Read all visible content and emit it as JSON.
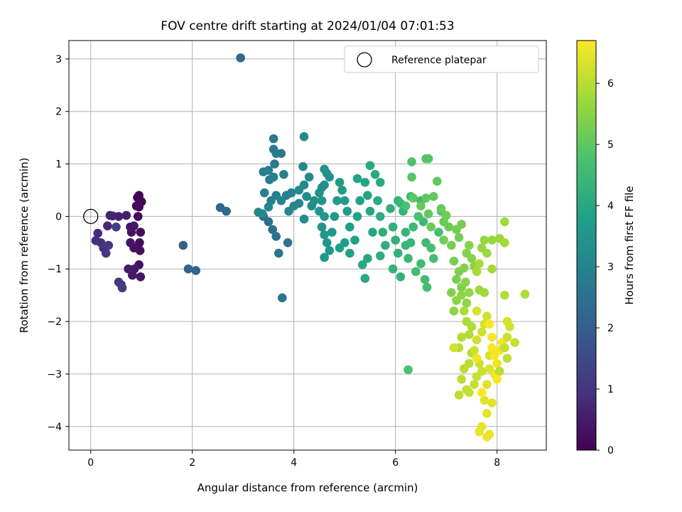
{
  "chart_data": {
    "type": "scatter",
    "title": "FOV centre drift starting at 2024/01/04 07:01:53",
    "xlabel": "Angular distance from reference (arcmin)",
    "ylabel": "Rotation from reference (arcmin)",
    "xlim": [
      -0.43,
      8.97
    ],
    "ylim": [
      -4.45,
      3.35
    ],
    "xticks": [
      0,
      2,
      4,
      6,
      8
    ],
    "yticks": [
      3,
      2,
      1,
      0,
      -1,
      -2,
      -3,
      -4
    ],
    "xtick_labels": [
      "0",
      "2",
      "4",
      "6",
      "8"
    ],
    "ytick_labels": [
      "3",
      "2",
      "1",
      "0",
      "−1",
      "−2",
      "−3",
      "−4"
    ],
    "grid": true,
    "colormap": "viridis",
    "colorbar": {
      "label": "Hours from first FF file",
      "range": [
        0,
        6.7
      ],
      "ticks": [
        0,
        1,
        2,
        3,
        4,
        5,
        6
      ],
      "tick_labels": [
        "0",
        "1",
        "2",
        "3",
        "4",
        "5",
        "6"
      ]
    },
    "legend": {
      "position": "top-right",
      "entries": [
        {
          "label": "Reference platepar",
          "marker": "open-circle",
          "x": 0,
          "y": 0
        }
      ]
    },
    "points": [
      [
        0.95,
        0.4,
        0.05
      ],
      [
        0.92,
        0.36,
        0.08
      ],
      [
        0.9,
        0.2,
        0.1
      ],
      [
        1.0,
        0.28,
        0.12
      ],
      [
        0.95,
        0.18,
        0.15
      ],
      [
        0.93,
        0.0,
        0.18
      ],
      [
        0.98,
        -0.3,
        0.2
      ],
      [
        0.96,
        -0.5,
        0.22
      ],
      [
        0.97,
        -0.65,
        0.25
      ],
      [
        0.95,
        -0.92,
        0.28
      ],
      [
        0.85,
        -0.6,
        0.3
      ],
      [
        0.78,
        -0.5,
        0.33
      ],
      [
        0.8,
        -0.3,
        0.35
      ],
      [
        0.78,
        -0.2,
        0.38
      ],
      [
        0.85,
        -0.18,
        0.4
      ],
      [
        0.98,
        -1.15,
        0.42
      ],
      [
        0.82,
        -1.12,
        0.45
      ],
      [
        0.86,
        -1.0,
        0.48
      ],
      [
        0.74,
        -1.0,
        0.5
      ],
      [
        0.7,
        0.02,
        0.55
      ],
      [
        0.55,
        0.0,
        0.6
      ],
      [
        0.43,
        0.01,
        0.65
      ],
      [
        0.38,
        0.02,
        0.7
      ],
      [
        0.33,
        -0.18,
        0.75
      ],
      [
        0.14,
        -0.32,
        0.8
      ],
      [
        0.1,
        -0.46,
        0.85
      ],
      [
        0.2,
        -0.5,
        0.9
      ],
      [
        0.25,
        -0.6,
        0.95
      ],
      [
        0.3,
        -0.7,
        1.0
      ],
      [
        0.35,
        -0.55,
        1.05
      ],
      [
        0.55,
        -1.25,
        1.1
      ],
      [
        0.6,
        -1.3,
        1.15
      ],
      [
        0.62,
        -1.36,
        1.2
      ],
      [
        0.5,
        -0.2,
        1.25
      ],
      [
        1.82,
        -0.55,
        2.05
      ],
      [
        1.92,
        -1.0,
        2.1
      ],
      [
        2.07,
        -1.03,
        2.15
      ],
      [
        2.55,
        0.17,
        2.2
      ],
      [
        2.67,
        0.1,
        2.25
      ],
      [
        2.95,
        3.02,
        2.3
      ],
      [
        3.4,
        0.0,
        2.35
      ],
      [
        3.5,
        -0.1,
        2.4
      ],
      [
        3.58,
        -0.25,
        2.45
      ],
      [
        3.65,
        -0.38,
        2.5
      ],
      [
        3.7,
        -0.7,
        2.55
      ],
      [
        3.77,
        -1.55,
        2.6
      ],
      [
        3.88,
        -0.5,
        2.65
      ],
      [
        3.6,
        1.48,
        2.7
      ],
      [
        3.6,
        1.28,
        2.72
      ],
      [
        3.65,
        1.2,
        2.74
      ],
      [
        3.75,
        1.2,
        2.76
      ],
      [
        3.62,
        1.0,
        2.78
      ],
      [
        3.4,
        0.85,
        2.8
      ],
      [
        3.5,
        0.88,
        2.82
      ],
      [
        3.52,
        0.7,
        2.84
      ],
      [
        3.6,
        0.75,
        2.86
      ],
      [
        3.8,
        0.8,
        2.88
      ],
      [
        3.42,
        0.45,
        2.9
      ],
      [
        3.55,
        0.3,
        2.92
      ],
      [
        3.65,
        0.4,
        2.94
      ],
      [
        3.75,
        0.3,
        2.96
      ],
      [
        3.85,
        0.4,
        2.98
      ],
      [
        3.95,
        0.45,
        3.0
      ],
      [
        3.3,
        0.08,
        3.02
      ],
      [
        3.38,
        0.05,
        3.04
      ],
      [
        3.5,
        0.18,
        3.06
      ],
      [
        3.9,
        0.1,
        3.08
      ],
      [
        4.0,
        0.2,
        3.1
      ],
      [
        4.1,
        0.25,
        3.12
      ],
      [
        4.2,
        1.52,
        3.14
      ],
      [
        4.18,
        0.95,
        3.16
      ],
      [
        4.3,
        0.75,
        3.18
      ],
      [
        4.2,
        0.6,
        3.2
      ],
      [
        4.1,
        0.5,
        3.22
      ],
      [
        4.25,
        0.38,
        3.24
      ],
      [
        4.35,
        0.2,
        3.26
      ],
      [
        4.2,
        -0.05,
        3.28
      ],
      [
        4.4,
        0.3,
        3.3
      ],
      [
        4.5,
        0.45,
        3.32
      ],
      [
        4.55,
        0.55,
        3.34
      ],
      [
        4.6,
        0.6,
        3.36
      ],
      [
        4.65,
        0.82,
        3.38
      ],
      [
        4.6,
        0.9,
        3.4
      ],
      [
        4.7,
        0.75,
        3.42
      ],
      [
        4.55,
        0.3,
        3.44
      ],
      [
        4.5,
        0.1,
        3.46
      ],
      [
        4.6,
        0.0,
        3.48
      ],
      [
        4.55,
        -0.2,
        3.5
      ],
      [
        4.6,
        -0.35,
        3.52
      ],
      [
        4.65,
        -0.5,
        3.54
      ],
      [
        4.7,
        -0.65,
        3.56
      ],
      [
        4.6,
        -0.78,
        3.58
      ],
      [
        4.75,
        -0.3,
        3.6
      ],
      [
        4.8,
        0.0,
        3.62
      ],
      [
        4.85,
        0.3,
        3.64
      ],
      [
        4.9,
        0.65,
        3.66
      ],
      [
        4.95,
        0.5,
        3.68
      ],
      [
        5.0,
        0.3,
        3.7
      ],
      [
        5.05,
        0.1,
        3.72
      ],
      [
        5.1,
        -0.2,
        3.74
      ],
      [
        5.0,
        -0.5,
        3.76
      ],
      [
        4.9,
        -0.6,
        3.78
      ],
      [
        5.1,
        -0.7,
        3.8
      ],
      [
        5.2,
        -0.45,
        3.82
      ],
      [
        5.25,
        0.0,
        3.84
      ],
      [
        5.3,
        0.3,
        3.86
      ],
      [
        5.25,
        0.72,
        3.88
      ],
      [
        5.4,
        0.65,
        3.9
      ],
      [
        5.45,
        0.4,
        3.92
      ],
      [
        5.5,
        0.1,
        3.94
      ],
      [
        5.55,
        -0.3,
        3.96
      ],
      [
        5.45,
        -0.8,
        3.98
      ],
      [
        5.4,
        -1.18,
        4.0
      ],
      [
        5.35,
        -0.92,
        4.02
      ],
      [
        5.5,
        0.97,
        4.04
      ],
      [
        5.6,
        0.8,
        4.06
      ],
      [
        5.7,
        0.65,
        4.08
      ],
      [
        5.65,
        0.3,
        4.1
      ],
      [
        5.7,
        0.0,
        4.12
      ],
      [
        5.75,
        -0.3,
        4.14
      ],
      [
        5.8,
        -0.55,
        4.16
      ],
      [
        5.7,
        -0.75,
        4.18
      ],
      [
        5.9,
        0.15,
        4.2
      ],
      [
        5.95,
        -0.2,
        4.22
      ],
      [
        6.0,
        -0.45,
        4.24
      ],
      [
        6.05,
        -0.7,
        4.26
      ],
      [
        5.95,
        -1.0,
        4.28
      ],
      [
        6.1,
        -1.15,
        4.3
      ],
      [
        6.05,
        0.3,
        4.32
      ],
      [
        6.15,
        0.1,
        4.34
      ],
      [
        6.2,
        -0.3,
        4.36
      ],
      [
        6.3,
        -0.5,
        4.38
      ],
      [
        6.25,
        -0.8,
        4.4
      ],
      [
        6.2,
        -0.55,
        4.42
      ],
      [
        6.1,
        0.25,
        4.44
      ],
      [
        6.3,
        0.38,
        4.46
      ],
      [
        6.35,
        -0.2,
        4.48
      ],
      [
        6.5,
        0.3,
        4.5
      ],
      [
        6.55,
        -0.1,
        4.52
      ],
      [
        6.6,
        -0.5,
        4.54
      ],
      [
        6.5,
        -0.9,
        4.56
      ],
      [
        6.4,
        -1.05,
        4.58
      ],
      [
        6.58,
        -1.2,
        4.6
      ],
      [
        6.62,
        -1.35,
        4.62
      ],
      [
        6.75,
        -0.8,
        4.64
      ],
      [
        6.7,
        -0.6,
        4.66
      ],
      [
        6.85,
        -0.3,
        4.68
      ],
      [
        6.9,
        0.1,
        4.7
      ],
      [
        6.2,
        0.2,
        4.72
      ],
      [
        6.45,
        0.0,
        4.74
      ],
      [
        6.25,
        -2.92,
        4.76
      ],
      [
        6.32,
        1.04,
        4.8
      ],
      [
        6.6,
        1.1,
        4.85
      ],
      [
        6.65,
        1.1,
        4.88
      ],
      [
        6.32,
        0.75,
        4.9
      ],
      [
        6.35,
        0.35,
        4.95
      ],
      [
        6.6,
        0.35,
        5.0
      ],
      [
        6.75,
        0.38,
        5.02
      ],
      [
        6.82,
        0.67,
        5.04
      ],
      [
        6.65,
        0.05,
        5.06
      ],
      [
        6.5,
        0.2,
        5.08
      ],
      [
        6.9,
        0.15,
        5.1
      ],
      [
        6.95,
        -0.1,
        5.12
      ],
      [
        6.7,
        -0.2,
        5.14
      ],
      [
        7.05,
        -0.2,
        5.16
      ],
      [
        7.0,
        0.02,
        5.18
      ],
      [
        6.95,
        -0.45,
        5.2
      ],
      [
        7.2,
        -0.25,
        5.22
      ],
      [
        7.25,
        -0.4,
        5.24
      ],
      [
        7.3,
        -0.15,
        5.26
      ],
      [
        7.1,
        -0.55,
        5.28
      ],
      [
        7.15,
        -0.85,
        5.3
      ],
      [
        7.2,
        -1.2,
        5.32
      ],
      [
        7.25,
        -1.05,
        5.34
      ],
      [
        7.1,
        -1.45,
        5.36
      ],
      [
        7.3,
        -1.35,
        5.38
      ],
      [
        7.35,
        -0.98,
        5.4
      ],
      [
        7.4,
        -0.7,
        5.42
      ],
      [
        7.45,
        -0.55,
        5.44
      ],
      [
        7.5,
        -0.8,
        5.46
      ],
      [
        7.55,
        -0.95,
        5.48
      ],
      [
        7.38,
        -1.25,
        5.5
      ],
      [
        7.2,
        -1.6,
        5.52
      ],
      [
        7.15,
        -1.8,
        5.54
      ],
      [
        7.3,
        -1.5,
        5.56
      ],
      [
        7.4,
        -1.65,
        5.58
      ],
      [
        7.45,
        -1.45,
        5.6
      ],
      [
        7.7,
        -0.6,
        5.62
      ],
      [
        7.75,
        -0.45,
        5.64
      ],
      [
        7.9,
        -0.45,
        5.66
      ],
      [
        8.05,
        -0.42,
        5.68
      ],
      [
        7.8,
        -0.7,
        5.7
      ],
      [
        7.65,
        -1.4,
        5.72
      ],
      [
        7.75,
        -1.45,
        5.74
      ],
      [
        7.9,
        -1.0,
        5.76
      ],
      [
        8.15,
        -0.1,
        5.78
      ],
      [
        8.15,
        -0.5,
        5.8
      ],
      [
        7.6,
        -1.05,
        5.82
      ],
      [
        7.65,
        -0.9,
        5.84
      ],
      [
        7.35,
        -1.8,
        5.86
      ],
      [
        7.4,
        -2.0,
        5.88
      ],
      [
        7.5,
        -2.1,
        5.9
      ],
      [
        7.45,
        -2.25,
        5.92
      ],
      [
        7.3,
        -2.3,
        5.94
      ],
      [
        7.25,
        -2.5,
        5.96
      ],
      [
        7.5,
        -2.6,
        5.98
      ],
      [
        7.45,
        -2.8,
        6.0
      ],
      [
        7.35,
        -2.9,
        6.02
      ],
      [
        7.3,
        -3.1,
        6.04
      ],
      [
        7.4,
        -3.3,
        6.06
      ],
      [
        7.25,
        -3.4,
        6.08
      ],
      [
        7.45,
        -3.35,
        6.1
      ],
      [
        7.55,
        -3.2,
        6.12
      ],
      [
        7.6,
        -3.05,
        6.14
      ],
      [
        7.7,
        -2.95,
        6.16
      ],
      [
        7.65,
        -2.8,
        6.18
      ],
      [
        7.55,
        -2.55,
        6.2
      ],
      [
        7.6,
        -2.35,
        6.22
      ],
      [
        7.7,
        -2.2,
        6.24
      ],
      [
        7.75,
        -2.05,
        6.26
      ],
      [
        7.8,
        -1.9,
        6.28
      ],
      [
        7.15,
        -2.5,
        6.3
      ],
      [
        7.6,
        -1.8,
        6.32
      ],
      [
        7.85,
        -2.65,
        6.34
      ],
      [
        7.85,
        -2.9,
        6.36
      ],
      [
        7.8,
        -3.2,
        6.38
      ],
      [
        7.75,
        -3.5,
        6.4
      ],
      [
        7.9,
        -3.55,
        6.42
      ],
      [
        7.8,
        -3.75,
        6.44
      ],
      [
        7.7,
        -4.0,
        6.46
      ],
      [
        7.65,
        -4.1,
        6.48
      ],
      [
        7.85,
        -4.15,
        6.5
      ],
      [
        7.8,
        -4.2,
        6.52
      ],
      [
        7.95,
        -3.0,
        6.54
      ],
      [
        8.0,
        -2.8,
        6.56
      ],
      [
        8.05,
        -2.55,
        6.58
      ],
      [
        8.1,
        -2.4,
        6.6
      ],
      [
        7.95,
        -2.65,
        6.62
      ],
      [
        7.9,
        -2.3,
        6.64
      ],
      [
        7.85,
        -2.05,
        6.66
      ],
      [
        8.2,
        -2.0,
        6.3
      ],
      [
        8.25,
        -2.1,
        6.25
      ],
      [
        8.2,
        -2.3,
        6.2
      ],
      [
        8.35,
        -2.4,
        6.15
      ],
      [
        8.15,
        -2.5,
        6.1
      ],
      [
        8.2,
        -2.7,
        6.05
      ],
      [
        8.05,
        -2.95,
        6.0
      ],
      [
        8.15,
        -1.5,
        5.95
      ],
      [
        8.55,
        -1.48,
        5.9
      ],
      [
        8.0,
        -3.1,
        6.68
      ],
      [
        7.7,
        -3.35,
        6.7
      ],
      [
        7.6,
        -2.7,
        6.6
      ],
      [
        7.9,
        -2.5,
        6.65
      ]
    ]
  }
}
